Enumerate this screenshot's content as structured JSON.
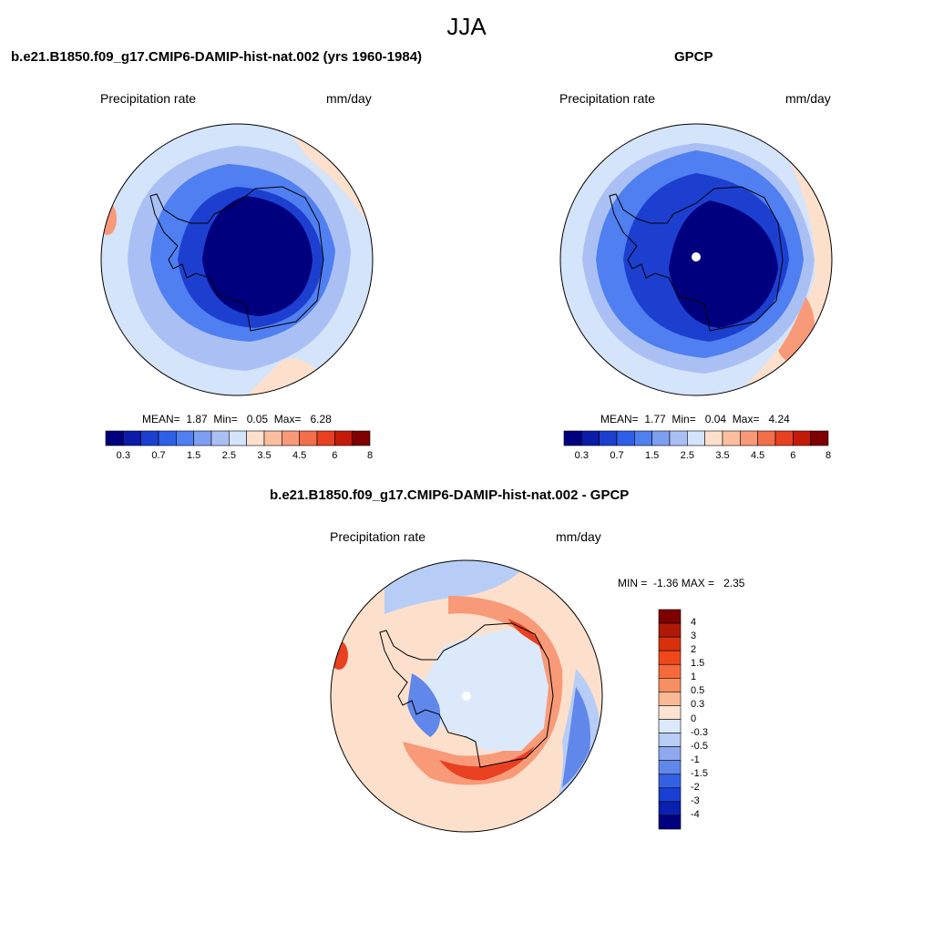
{
  "suptitle": "JJA",
  "panel1": {
    "title": "b.e21.B1850.f09_g17.CMIP6-DAMIP-hist-nat.002 (yrs 1960-1984)",
    "left_label": "Precipitation rate",
    "right_label": "mm/day",
    "stats": {
      "mean_label": "MEAN=",
      "mean": "1.87",
      "min_label": "Min=",
      "min": "0.05",
      "max_label": "Max=",
      "max": "6.28"
    }
  },
  "panel2": {
    "title": "GPCP",
    "left_label": "Precipitation rate",
    "right_label": "mm/day",
    "stats": {
      "mean_label": "MEAN=",
      "mean": "1.77",
      "min_label": "Min=",
      "min": "0.04",
      "max_label": "Max=",
      "max": "4.24"
    }
  },
  "panel3": {
    "title": "b.e21.B1850.f09_g17.CMIP6-DAMIP-hist-nat.002 - GPCP",
    "left_label": "Precipitation rate",
    "right_label": "mm/day",
    "stats": {
      "min_label": "MIN =",
      "min": "-1.36",
      "max_label": "MAX =",
      "max": "2.35"
    }
  },
  "colorbar_abs": {
    "tick_labels": [
      "0.3",
      "0.7",
      "1.5",
      "2.5",
      "3.5",
      "4.5",
      "6",
      "8"
    ],
    "colors": [
      "#00007f",
      "#0a1ca8",
      "#1c3fd0",
      "#2f5fe8",
      "#4f7ff0",
      "#7d9ff2",
      "#aac0f5",
      "#d4e4fa",
      "#fde0cc",
      "#fbbfa0",
      "#f89a78",
      "#f26f4a",
      "#e84020",
      "#c41a08",
      "#7f0000"
    ]
  },
  "colorbar_diff": {
    "tick_labels": [
      "4",
      "3",
      "2",
      "1.5",
      "1",
      "0.5",
      "0.3",
      "0",
      "-0.3",
      "-0.5",
      "-1",
      "-1.5",
      "-2",
      "-3",
      "-4"
    ],
    "colors": [
      "#7f0000",
      "#b01a05",
      "#d9300c",
      "#f0481a",
      "#f56a3a",
      "#f88f62",
      "#fab995",
      "#fde3d2",
      "#dce9fb",
      "#b8cdf6",
      "#8ea9f0",
      "#6087ea",
      "#3460e4",
      "#1a3fd4",
      "#0a20b0",
      "#00007f"
    ]
  },
  "map_colors": {
    "abs_background": "#d4e4fa",
    "abs_ring": "#aac0f5",
    "abs_mid": "#4f7ff0",
    "abs_inner": "#1c3fd0",
    "abs_core": "#00007f",
    "abs_warm": "#fde0cc",
    "abs_warm2": "#f89a78",
    "diff_background": "#fde0cc",
    "diff_warm": "#f89a78",
    "diff_hot": "#e84020",
    "diff_cool": "#b8cdf6",
    "diff_blue": "#6087ea",
    "diff_pole": "#dce9fb"
  }
}
